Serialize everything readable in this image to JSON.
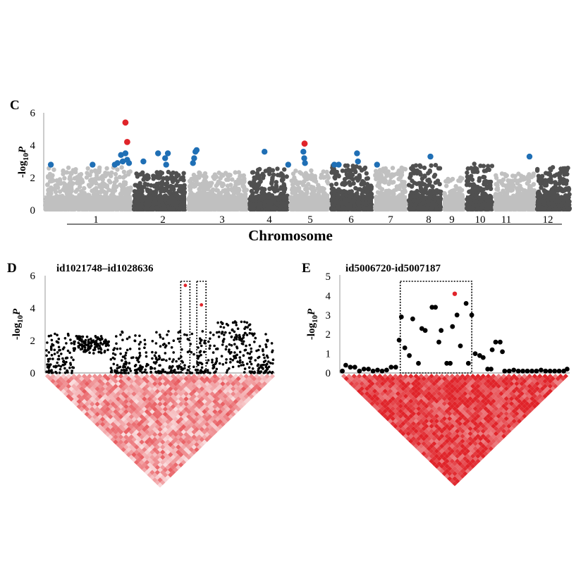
{
  "panels": {
    "C": {
      "letter": "C",
      "ylabel_pre": "-log",
      "ylabel_sub": "10",
      "ylabel_var": "P",
      "xlabel": "Chromosome",
      "yticks": [
        "0",
        "2",
        "4",
        "6"
      ],
      "chromosomes": [
        "1",
        "2",
        "3",
        "4",
        "5",
        "6",
        "7",
        "8",
        "9",
        "10",
        "11",
        "12"
      ]
    },
    "D": {
      "letter": "D",
      "title": "id1021748–id1028636",
      "ylabel_pre": "-log",
      "ylabel_sub": "10",
      "ylabel_var": "P",
      "yticks": [
        "0",
        "2",
        "4",
        "6"
      ]
    },
    "E": {
      "letter": "E",
      "title": "id5006720-id5007187",
      "ylabel_pre": "-log",
      "ylabel_sub": "10",
      "ylabel_var": "P",
      "yticks": [
        "0",
        "1",
        "2",
        "3",
        "4",
        "5"
      ]
    }
  },
  "colors": {
    "light": "#c0c0c0",
    "dark": "#505050",
    "highlight": "#1f6fb5",
    "top": "#e0242a",
    "ld": "#e0242a"
  },
  "chart_data": [
    {
      "panel": "C",
      "type": "scatter",
      "xlabel": "Chromosome",
      "ylabel": "-log10P",
      "ylim": [
        0,
        6
      ],
      "categories": [
        "1",
        "2",
        "3",
        "4",
        "5",
        "6",
        "7",
        "8",
        "9",
        "10",
        "11",
        "12"
      ],
      "chromosome_peak_max": [
        2.6,
        2.3,
        2.3,
        2.5,
        2.4,
        2.7,
        2.6,
        2.8,
        2.0,
        2.8,
        2.2,
        2.6
      ],
      "highlight_points": [
        {
          "chr": "1",
          "pos": 0.08,
          "y": 2.8
        },
        {
          "chr": "1",
          "pos": 0.55,
          "y": 2.8
        },
        {
          "chr": "1",
          "pos": 0.8,
          "y": 2.8
        },
        {
          "chr": "1",
          "pos": 0.83,
          "y": 2.9
        },
        {
          "chr": "1",
          "pos": 0.87,
          "y": 3.4
        },
        {
          "chr": "1",
          "pos": 0.89,
          "y": 3.0
        },
        {
          "chr": "1",
          "pos": 0.92,
          "y": 3.5
        },
        {
          "chr": "1",
          "pos": 0.94,
          "y": 3.1
        },
        {
          "chr": "1",
          "pos": 0.96,
          "y": 2.9
        },
        {
          "chr": "2",
          "pos": 0.2,
          "y": 3.0
        },
        {
          "chr": "2",
          "pos": 0.47,
          "y": 3.5
        },
        {
          "chr": "2",
          "pos": 0.6,
          "y": 3.2
        },
        {
          "chr": "2",
          "pos": 0.62,
          "y": 2.8
        },
        {
          "chr": "2",
          "pos": 0.65,
          "y": 3.5
        },
        {
          "chr": "3",
          "pos": 0.1,
          "y": 2.9
        },
        {
          "chr": "3",
          "pos": 0.12,
          "y": 3.2
        },
        {
          "chr": "3",
          "pos": 0.14,
          "y": 3.6
        },
        {
          "chr": "3",
          "pos": 0.16,
          "y": 3.7
        },
        {
          "chr": "4",
          "pos": 0.4,
          "y": 3.6
        },
        {
          "chr": "4",
          "pos": 0.98,
          "y": 2.8
        },
        {
          "chr": "5",
          "pos": 0.35,
          "y": 3.6
        },
        {
          "chr": "5",
          "pos": 0.37,
          "y": 3.2
        },
        {
          "chr": "5",
          "pos": 0.39,
          "y": 2.9
        },
        {
          "chr": "6",
          "pos": 0.1,
          "y": 2.8
        },
        {
          "chr": "6",
          "pos": 0.2,
          "y": 2.8
        },
        {
          "chr": "6",
          "pos": 0.62,
          "y": 3.5
        },
        {
          "chr": "6",
          "pos": 0.64,
          "y": 3.0
        },
        {
          "chr": "7",
          "pos": 0.1,
          "y": 2.8
        },
        {
          "chr": "8",
          "pos": 0.65,
          "y": 3.3
        },
        {
          "chr": "11",
          "pos": 0.85,
          "y": 3.3
        }
      ],
      "top_points": [
        {
          "chr": "1",
          "pos": 0.92,
          "y": 5.4
        },
        {
          "chr": "1",
          "pos": 0.94,
          "y": 4.2
        },
        {
          "chr": "5",
          "pos": 0.38,
          "y": 4.1
        }
      ]
    },
    {
      "panel": "D",
      "type": "scatter",
      "title": "id1021748–id1028636",
      "ylabel": "-log10P",
      "ylim": [
        0,
        6
      ],
      "top_points": [
        {
          "x": 0.61,
          "y": 5.4
        },
        {
          "x": 0.68,
          "y": 4.2
        }
      ],
      "highlight_boxes": [
        [
          0.59,
          0.63
        ],
        [
          0.66,
          0.7
        ]
      ]
    },
    {
      "panel": "E",
      "type": "scatter",
      "title": "id5006720-id5007187",
      "ylabel": "-log10P",
      "ylim": [
        0,
        5
      ],
      "points": [
        {
          "x": 0.005,
          "y": 0.1
        },
        {
          "x": 0.02,
          "y": 0.4
        },
        {
          "x": 0.04,
          "y": 0.3
        },
        {
          "x": 0.06,
          "y": 0.3
        },
        {
          "x": 0.08,
          "y": 0.1
        },
        {
          "x": 0.1,
          "y": 0.2
        },
        {
          "x": 0.12,
          "y": 0.2
        },
        {
          "x": 0.14,
          "y": 0.1
        },
        {
          "x": 0.16,
          "y": 0.15
        },
        {
          "x": 0.18,
          "y": 0.1
        },
        {
          "x": 0.2,
          "y": 0.15
        },
        {
          "x": 0.22,
          "y": 0.3
        },
        {
          "x": 0.24,
          "y": 0.3
        },
        {
          "x": 0.255,
          "y": 1.7
        },
        {
          "x": 0.265,
          "y": 2.9
        },
        {
          "x": 0.28,
          "y": 1.3
        },
        {
          "x": 0.3,
          "y": 0.9
        },
        {
          "x": 0.315,
          "y": 2.8
        },
        {
          "x": 0.34,
          "y": 0.5
        },
        {
          "x": 0.355,
          "y": 2.3
        },
        {
          "x": 0.37,
          "y": 2.2
        },
        {
          "x": 0.4,
          "y": 3.4
        },
        {
          "x": 0.415,
          "y": 3.4
        },
        {
          "x": 0.43,
          "y": 1.6
        },
        {
          "x": 0.44,
          "y": 2.2
        },
        {
          "x": 0.465,
          "y": 0.5
        },
        {
          "x": 0.48,
          "y": 0.5
        },
        {
          "x": 0.49,
          "y": 2.4
        },
        {
          "x": 0.51,
          "y": 3.0
        },
        {
          "x": 0.525,
          "y": 1.4
        },
        {
          "x": 0.55,
          "y": 3.6
        },
        {
          "x": 0.56,
          "y": 0.5
        },
        {
          "x": 0.575,
          "y": 3.0
        },
        {
          "x": 0.59,
          "y": 1.0
        },
        {
          "x": 0.61,
          "y": 0.9
        },
        {
          "x": 0.625,
          "y": 0.8
        },
        {
          "x": 0.645,
          "y": 0.2
        },
        {
          "x": 0.66,
          "y": 0.2
        },
        {
          "x": 0.665,
          "y": 1.2
        },
        {
          "x": 0.68,
          "y": 1.6
        },
        {
          "x": 0.7,
          "y": 1.6
        },
        {
          "x": 0.71,
          "y": 1.1
        },
        {
          "x": 0.72,
          "y": 0.1
        },
        {
          "x": 0.74,
          "y": 0.1
        },
        {
          "x": 0.76,
          "y": 0.15
        },
        {
          "x": 0.78,
          "y": 0.1
        },
        {
          "x": 0.8,
          "y": 0.1
        },
        {
          "x": 0.82,
          "y": 0.1
        },
        {
          "x": 0.84,
          "y": 0.1
        },
        {
          "x": 0.86,
          "y": 0.1
        },
        {
          "x": 0.88,
          "y": 0.15
        },
        {
          "x": 0.9,
          "y": 0.1
        },
        {
          "x": 0.92,
          "y": 0.1
        },
        {
          "x": 0.94,
          "y": 0.1
        },
        {
          "x": 0.96,
          "y": 0.1
        },
        {
          "x": 0.98,
          "y": 0.1
        },
        {
          "x": 0.995,
          "y": 0.2
        }
      ],
      "top_points": [
        {
          "x": 0.5,
          "y": 4.1
        }
      ],
      "highlight_boxes": [
        [
          0.26,
          0.575
        ]
      ]
    }
  ]
}
